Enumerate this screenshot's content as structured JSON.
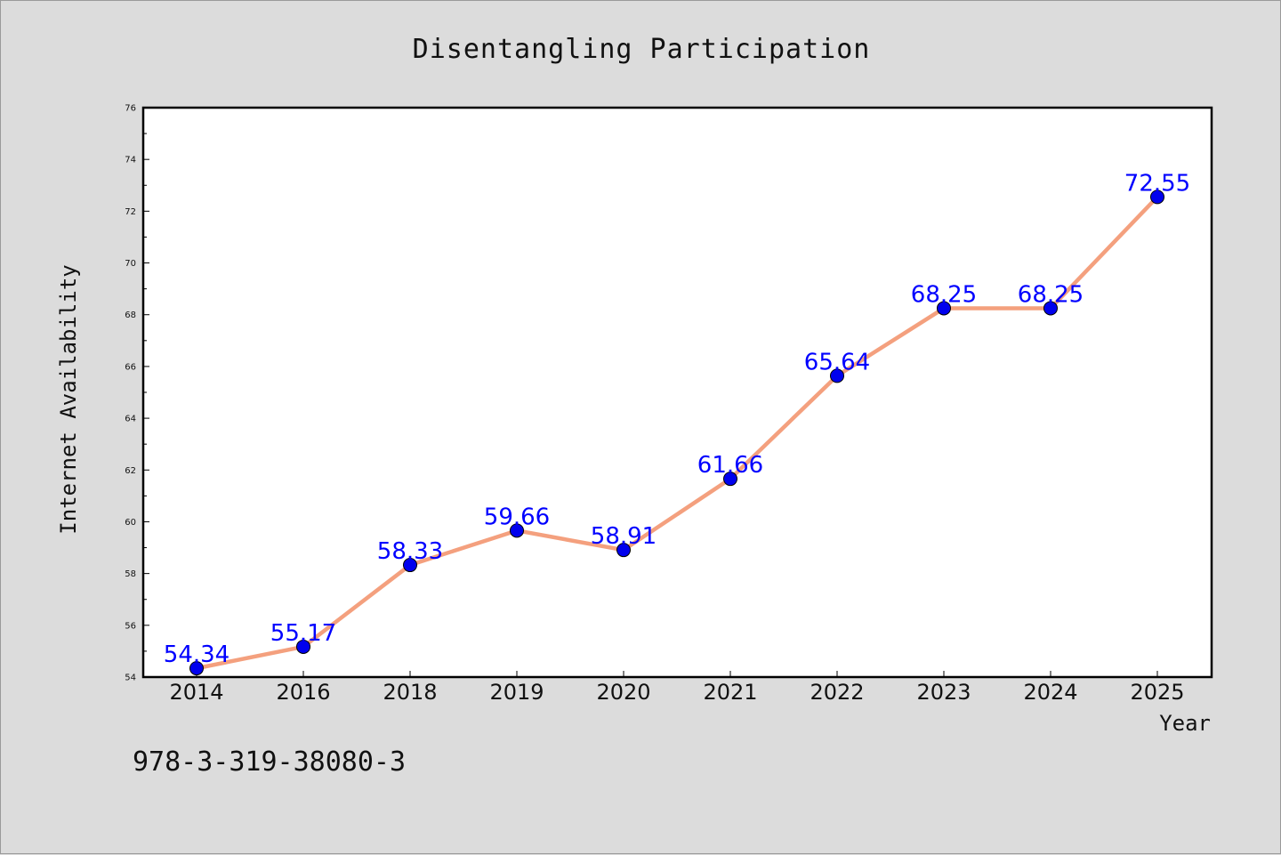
{
  "chart_data": {
    "type": "line",
    "title": "Disentangling Participation",
    "xlabel": "Year",
    "ylabel": "Internet Availability",
    "categories": [
      "2014",
      "2016",
      "2018",
      "2019",
      "2020",
      "2021",
      "2022",
      "2023",
      "2024",
      "2025"
    ],
    "series": [
      {
        "values": [
          54.34,
          55.17,
          58.33,
          59.66,
          58.91,
          61.66,
          65.64,
          68.25,
          68.25,
          72.55
        ],
        "labels": [
          "54.34",
          "55.17",
          "58.33",
          "59.66",
          "58.91",
          "61.66",
          "65.64",
          "68.25",
          "68.25",
          "72.55"
        ]
      }
    ],
    "ylim": [
      54,
      76
    ],
    "yticks": [
      54,
      56,
      58,
      60,
      62,
      64,
      66,
      68,
      70,
      72,
      74,
      76
    ],
    "line_color": "#f4a07e",
    "marker_color": "#0000ee",
    "label_color": "#0000ff",
    "grid": false,
    "legend": "none"
  },
  "footer": {
    "isbn": "978-3-319-38080-3"
  }
}
